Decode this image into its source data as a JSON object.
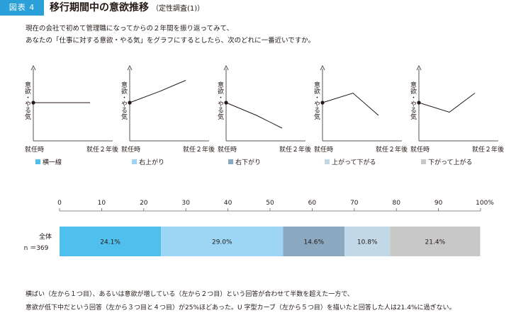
{
  "header": {
    "figure_label": "図表 4",
    "title": "移行期間中の意欲推移",
    "subtitle": "（定性調査(1)）"
  },
  "question": {
    "line1": "現在の会社で初めて管理職になってからの２年間を振り返ってみて、",
    "line2": "あなたの「仕事に対する意欲・やる気」をグラフにするとしたら、次のどれに一番近いですか。"
  },
  "mini_charts": {
    "y_label": "意欲・やる気",
    "x_start_label": "就任時",
    "x_end_label": "就任２年後",
    "items": [
      {
        "legend": "横一線",
        "color": "#4fc0ee",
        "shape": [
          0.5,
          0.5,
          0.5
        ]
      },
      {
        "legend": "右上がり",
        "color": "#9dd6f5",
        "shape": [
          0.5,
          0.68,
          0.85
        ]
      },
      {
        "legend": "右下がり",
        "color": "#8aa8bf",
        "shape": [
          0.5,
          0.3,
          0.1
        ]
      },
      {
        "legend": "上がって下がる",
        "color": "#c3d8e6",
        "shape": [
          0.5,
          0.65,
          0.3
        ]
      },
      {
        "legend": "下がって上がる",
        "color": "#c8c8c8",
        "shape": [
          0.5,
          0.35,
          0.65
        ]
      }
    ]
  },
  "chart_data": {
    "type": "bar",
    "orientation": "horizontal-stacked",
    "xlim": [
      0,
      100
    ],
    "ticks": [
      "0",
      "10",
      "20",
      "30",
      "40",
      "50",
      "60",
      "70",
      "80",
      "90",
      "100%"
    ],
    "category": {
      "line1": "全体",
      "line2": "n ＝369"
    },
    "series": [
      {
        "name": "横一線",
        "value": 24.1,
        "label": "24.1%",
        "color": "#4fc0ee"
      },
      {
        "name": "右上がり",
        "value": 29.0,
        "label": "29.0%",
        "color": "#9dd6f5"
      },
      {
        "name": "右下がり",
        "value": 14.6,
        "label": "14.6%",
        "color": "#8aa8bf"
      },
      {
        "name": "上がって下がる",
        "value": 10.8,
        "label": "10.8%",
        "color": "#c3d8e6"
      },
      {
        "name": "下がって上がる",
        "value": 21.4,
        "label": "21.4%",
        "color": "#c8c8c8"
      }
    ]
  },
  "footer": {
    "line1": "横ばい（左から１つ目）、あるいは意欲が増している（左から２つ目）という回答が合わせて半数を超えた一方で、",
    "line2": "意欲が低下中だという回答（左から３つ目と４つ目）が25%ほどあった。U 字型カーブ（左から５つ目）を描いたと回答した人は21.4%に過ぎない。"
  }
}
